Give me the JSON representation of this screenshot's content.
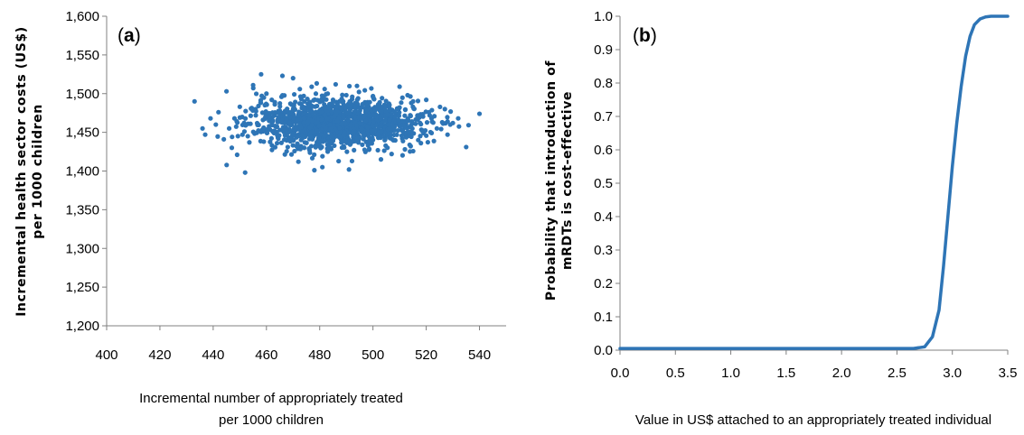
{
  "chart_data": [
    {
      "panel_label": "a",
      "type": "scatter",
      "title": "",
      "xlabel": [
        "Incremental number of appropriately treated",
        "per 1000 children"
      ],
      "ylabel": [
        "Incremental health sector costs (US$)",
        "per 1000 children"
      ],
      "xlim": [
        400,
        550
      ],
      "ylim": [
        1200,
        1600
      ],
      "x_ticks": [
        "400",
        "420",
        "440",
        "460",
        "480",
        "500",
        "520",
        "540"
      ],
      "y_ticks": [
        "1,200",
        "1,250",
        "1,300",
        "1,350",
        "1,400",
        "1,450",
        "1,500",
        "1,550",
        "1,600"
      ],
      "color": "#2e75b6",
      "grid": false,
      "points": [
        [
          433,
          1490
        ],
        [
          437,
          1447
        ],
        [
          441,
          1460
        ],
        [
          452,
          1398
        ],
        [
          458,
          1525
        ],
        [
          540,
          1474
        ],
        [
          535,
          1431
        ],
        [
          520,
          1492
        ],
        [
          470,
          1520
        ],
        [
          478,
          1401
        ],
        [
          486,
          1512
        ],
        [
          491,
          1402
        ],
        [
          503,
          1415
        ],
        [
          510,
          1509
        ],
        [
          527,
          1480
        ],
        [
          445,
          1503
        ],
        [
          449,
          1421
        ],
        [
          455,
          1511
        ],
        [
          462,
          1492
        ],
        [
          466,
          1523
        ],
        [
          472,
          1412
        ],
        [
          481,
          1405
        ],
        [
          494,
          1510
        ],
        [
          498,
          1489
        ],
        [
          507,
          1422
        ],
        [
          513,
          1498
        ],
        [
          517,
          1440
        ],
        [
          524,
          1455
        ],
        [
          530,
          1462
        ],
        [
          442,
          1476
        ],
        [
          446,
          1455
        ],
        [
          448,
          1468
        ],
        [
          450,
          1483
        ],
        [
          453,
          1445
        ],
        [
          456,
          1472
        ],
        [
          459,
          1438
        ],
        [
          461,
          1465
        ],
        [
          463,
          1452
        ],
        [
          465,
          1478
        ],
        [
          467,
          1446
        ],
        [
          469,
          1487
        ],
        [
          471,
          1463
        ],
        [
          473,
          1440
        ],
        [
          475,
          1471
        ],
        [
          477,
          1456
        ],
        [
          479,
          1484
        ],
        [
          480,
          1462
        ],
        [
          482,
          1447
        ],
        [
          484,
          1470
        ],
        [
          485,
          1492
        ],
        [
          487,
          1459
        ],
        [
          488,
          1441
        ],
        [
          490,
          1476
        ],
        [
          492,
          1463
        ],
        [
          493,
          1449
        ],
        [
          495,
          1468
        ],
        [
          497,
          1481
        ],
        [
          499,
          1455
        ],
        [
          501,
          1466
        ],
        [
          502,
          1443
        ],
        [
          504,
          1474
        ],
        [
          505,
          1459
        ],
        [
          508,
          1469
        ],
        [
          511,
          1452
        ],
        [
          514,
          1472
        ],
        [
          516,
          1461
        ],
        [
          519,
          1449
        ],
        [
          522,
          1468
        ],
        [
          468,
          1431
        ],
        [
          476,
          1429
        ],
        [
          483,
          1425
        ],
        [
          489,
          1432
        ],
        [
          496,
          1434
        ],
        [
          474,
          1497
        ],
        [
          483,
          1500
        ],
        [
          490,
          1498
        ],
        [
          500,
          1496
        ],
        [
          506,
          1487
        ],
        [
          460,
          1500
        ],
        [
          454,
          1461
        ],
        [
          457,
          1484
        ],
        [
          464,
          1436
        ],
        [
          470,
          1474
        ],
        [
          478,
          1467
        ],
        [
          486,
          1479
        ],
        [
          494,
          1456
        ],
        [
          502,
          1485
        ],
        [
          509,
          1461
        ],
        [
          515,
          1483
        ],
        [
          521,
          1476
        ],
        [
          444,
          1441
        ],
        [
          439,
          1468
        ],
        [
          436,
          1455
        ],
        [
          528,
          1447
        ],
        [
          532,
          1468
        ],
        [
          451,
          1447
        ],
        [
          526,
          1463
        ],
        [
          518,
          1436
        ],
        [
          512,
          1428
        ],
        [
          447,
          1430
        ]
      ]
    },
    {
      "panel_label": "b",
      "type": "line",
      "title": "",
      "xlabel": "Value in US$ attached to an appropriately treated individual",
      "ylabel": [
        "Probability that introduction of",
        "mRDTs is cost-effective"
      ],
      "xlim": [
        0.0,
        3.5
      ],
      "ylim": [
        0.0,
        1.0
      ],
      "x_ticks": [
        "0.0",
        "0.5",
        "1.0",
        "1.5",
        "2.0",
        "2.5",
        "3.0",
        "3.5"
      ],
      "y_ticks": [
        "0.0",
        "0.1",
        "0.2",
        "0.3",
        "0.4",
        "0.5",
        "0.6",
        "0.7",
        "0.8",
        "0.9",
        "1.0"
      ],
      "color": "#2e75b6",
      "grid": false,
      "series": [
        {
          "x": [
            0.0,
            2.5,
            2.65,
            2.75,
            2.82,
            2.88,
            2.92,
            2.96,
            3.0,
            3.04,
            3.08,
            3.12,
            3.16,
            3.2,
            3.25,
            3.3,
            3.35,
            3.5
          ],
          "y": [
            0.005,
            0.005,
            0.005,
            0.01,
            0.04,
            0.12,
            0.25,
            0.4,
            0.55,
            0.68,
            0.79,
            0.88,
            0.94,
            0.975,
            0.992,
            0.998,
            1.0,
            1.0
          ]
        }
      ]
    }
  ]
}
